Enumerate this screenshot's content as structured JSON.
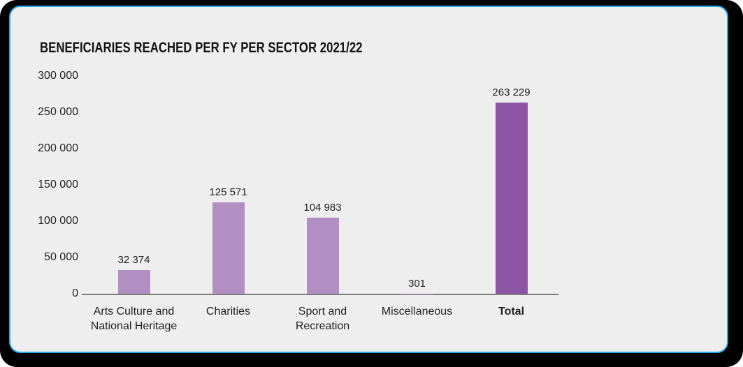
{
  "frame": {
    "outer_border_color": "#000000",
    "inner_border_color": "#29abe2",
    "card_background": "#eeeeee"
  },
  "chart_data": {
    "type": "bar",
    "title": "BENEFICIARIES REACHED PER FY PER SECTOR 2021/22",
    "categories": [
      "Arts Culture and\nNational Heritage",
      "Charities",
      "Sport and\nRecreation",
      "Miscellaneous",
      "Total"
    ],
    "values": [
      32374,
      125571,
      104983,
      301,
      263229
    ],
    "value_labels": [
      "32 374",
      "125 571",
      "104 983",
      "301",
      "263 229"
    ],
    "ytick_labels": [
      "300 000",
      "250 000",
      "200 000",
      "150 000",
      "100 000",
      "50 000",
      "0"
    ],
    "ylim": [
      0,
      300000
    ],
    "xlabel": "",
    "ylabel": "",
    "grid": false,
    "legend": false,
    "bar_color": "#b18fc2",
    "emphasis_bar_color": "#8d55a3",
    "emphasis_index": 4,
    "bold_category_index": 4,
    "axis_line_color": "#7c7c7c",
    "text_color": "#231f20"
  }
}
